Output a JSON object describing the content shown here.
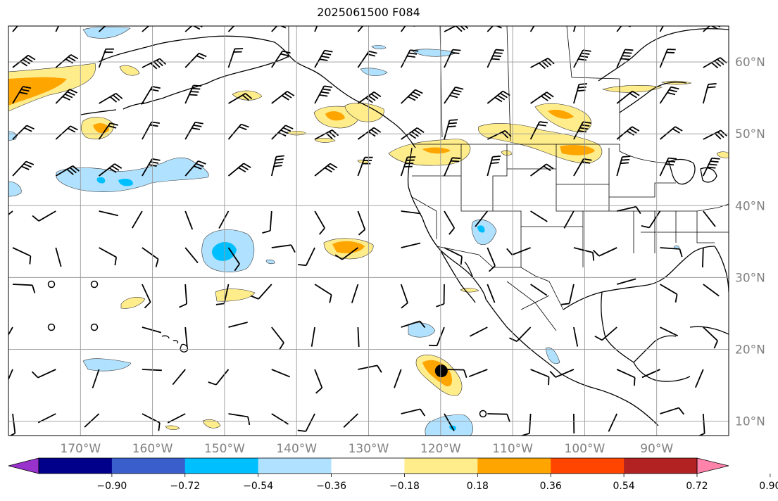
{
  "title": "2025061500 F084",
  "map": {
    "lon_range": [
      -180,
      -80
    ],
    "lat_range": [
      8,
      65
    ],
    "gridlines": true,
    "lon_labels": [
      "170°W",
      "160°W",
      "150°W",
      "140°W",
      "130°W",
      "120°W",
      "110°W",
      "100°W",
      "90°W"
    ],
    "lat_labels": [
      "60°N",
      "50°N",
      "40°N",
      "30°N",
      "20°N",
      "10°N"
    ],
    "lat_label_position": "right",
    "lon_label_position": "bottom",
    "wind_barbs": true,
    "coastlines": true,
    "state_borders": true
  },
  "colorbar": {
    "orientation": "horizontal",
    "extend": "both",
    "tick_labels": [
      "−0.90",
      "−0.72",
      "−0.54",
      "−0.36",
      "−0.18",
      "0.18",
      "0.36",
      "0.54",
      "0.72",
      "0.90"
    ],
    "colors": [
      "#9932cc",
      "#00008b",
      "#3a5fcd",
      "#00bfff",
      "#b0e2ff",
      "#ffffff",
      "#ffec8b",
      "#ffa500",
      "#ff4500",
      "#b22222",
      "#ff82ab"
    ]
  },
  "markers": [
    {
      "type": "storm-center",
      "lon": -119.9,
      "lat": 17.0,
      "color": "#000000"
    }
  ],
  "contour_colors": {
    "pos1": "#ffec8b",
    "pos2": "#ffa500",
    "neg1": "#b0e2ff",
    "neg2": "#00bfff"
  }
}
